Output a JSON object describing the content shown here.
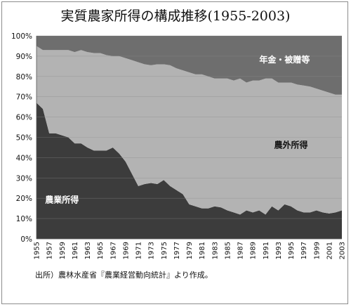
{
  "source_note": "出所）農林水産省『農業経営動向統計』より作成。",
  "chart_data": {
    "type": "area",
    "stacked": true,
    "percent": true,
    "title": "実質農家所得の構成推移(1955-2003)",
    "x": [
      1955,
      1956,
      1957,
      1958,
      1959,
      1960,
      1961,
      1962,
      1963,
      1964,
      1965,
      1966,
      1967,
      1968,
      1969,
      1970,
      1971,
      1972,
      1973,
      1974,
      1975,
      1976,
      1977,
      1978,
      1979,
      1980,
      1981,
      1982,
      1983,
      1984,
      1985,
      1986,
      1987,
      1988,
      1989,
      1990,
      1991,
      1992,
      1993,
      1994,
      1995,
      1996,
      1997,
      1998,
      1999,
      2000,
      2001,
      2002,
      2003
    ],
    "x_tick_labels": [
      "1955",
      "1957",
      "1959",
      "1961",
      "1963",
      "1965",
      "1967",
      "1969",
      "1971",
      "1973",
      "1975",
      "1977",
      "1979",
      "1981",
      "1983",
      "1985",
      "1987",
      "1989",
      "1991",
      "1993",
      "1995",
      "1997",
      "1999",
      "2001",
      "2003"
    ],
    "y_tick_labels": [
      "0%",
      "10%",
      "20%",
      "30%",
      "40%",
      "50%",
      "60%",
      "70%",
      "80%",
      "90%",
      "100%"
    ],
    "ylim": [
      0,
      100
    ],
    "series": [
      {
        "name": "農業所得",
        "color": "#3c3c3c",
        "values": [
          67,
          64,
          52,
          52,
          51,
          50,
          47,
          47,
          45,
          43.5,
          43.5,
          43.5,
          45,
          42,
          38,
          32,
          26,
          27,
          27.5,
          27,
          29,
          26,
          24,
          22,
          17,
          16,
          15,
          15,
          16,
          15.5,
          14,
          13,
          12,
          14,
          13,
          14,
          12,
          16,
          14,
          17,
          16,
          14,
          13,
          13,
          14,
          13,
          12.5,
          13,
          14
        ]
      },
      {
        "name": "農外所得",
        "color": "#b3b3b3",
        "values": [
          28,
          29,
          41,
          41,
          42,
          43,
          45,
          46,
          47,
          48,
          48,
          47,
          45,
          48,
          51,
          56,
          61,
          59,
          58,
          59,
          57,
          59.5,
          60,
          61,
          65,
          65,
          66,
          65,
          63,
          63.5,
          65,
          65,
          67,
          63,
          65,
          64,
          67,
          63,
          63,
          60,
          61,
          62,
          62.5,
          62,
          60,
          60,
          59.5,
          58,
          57
        ]
      },
      {
        "name": "年金・被贈等",
        "color": "#6e6e6e",
        "values": [
          5,
          7,
          7,
          7,
          7,
          7,
          8,
          7,
          8,
          8.5,
          8.5,
          9.5,
          10,
          10,
          11,
          12,
          13,
          14,
          14.5,
          14,
          14,
          14.5,
          16,
          17,
          18,
          19,
          19,
          20,
          21,
          21,
          21,
          22,
          21,
          23,
          22,
          22,
          21,
          21,
          23,
          23,
          23,
          24,
          24.5,
          25,
          26,
          27,
          28,
          29,
          29
        ]
      }
    ]
  }
}
